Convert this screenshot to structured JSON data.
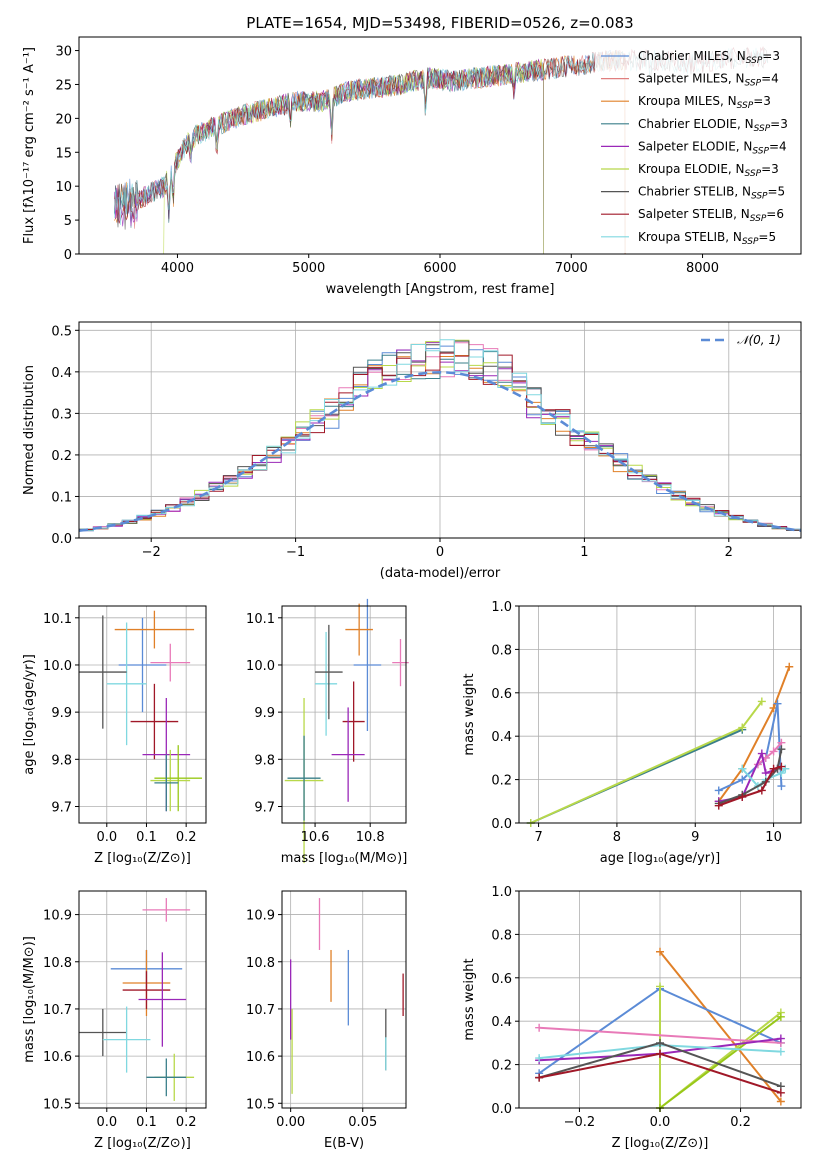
{
  "figure_title": "PLATE=1654, MJD=53498, FIBERID=0526, z=0.083",
  "colors": {
    "Chabrier MILES": "#5b8bd6",
    "Salpeter MILES": "#e07f7f",
    "Kroupa MILES": "#e08028",
    "Chabrier ELODIE": "#3a7f8a",
    "Salpeter ELODIE": "#9a28b8",
    "Kroupa ELODIE": "#b8d84a",
    "Chabrier STELIB": "#555555",
    "Salpeter STELIB": "#a01828",
    "Kroupa STELIB": "#80d8e0",
    "Salpeter pink": "#e87ab8",
    "Kroupa ELODIE green": "#98c818",
    "grid": "#b0b0b0",
    "normal_curve": "#5b8bd6"
  },
  "chart_data": [
    {
      "id": "spectrum",
      "type": "line",
      "xlabel": "wavelength [Angstrom, rest frame]",
      "ylabel": "Flux [fλ10⁻¹⁷ erg cm⁻² s⁻¹ A⁻¹]",
      "xlim": [
        3250,
        8750
      ],
      "ylim": [
        0,
        32
      ],
      "xticks": [
        "4000",
        "5000",
        "6000",
        "7000",
        "8000"
      ],
      "yticks": [
        "0",
        "5",
        "10",
        "15",
        "20",
        "25",
        "30"
      ],
      "grid": false,
      "legend_position": "right",
      "legend": [
        {
          "label": "Chabrier MILES, N",
          "sub": "SSP",
          "tail": "=3",
          "color": "#5b8bd6"
        },
        {
          "label": "Salpeter MILES, N",
          "sub": "SSP",
          "tail": "=4",
          "color": "#e07f7f"
        },
        {
          "label": "Kroupa MILES, N",
          "sub": "SSP",
          "tail": "=3",
          "color": "#e08028"
        },
        {
          "label": "Chabrier ELODIE, N",
          "sub": "SSP",
          "tail": "=3",
          "color": "#3a7f8a"
        },
        {
          "label": "Salpeter ELODIE, N",
          "sub": "SSP",
          "tail": "=4",
          "color": "#9a28b8"
        },
        {
          "label": "Kroupa ELODIE, N",
          "sub": "SSP",
          "tail": "=3",
          "color": "#b8d84a"
        },
        {
          "label": "Chabrier STELIB, N",
          "sub": "SSP",
          "tail": "=5",
          "color": "#555555"
        },
        {
          "label": "Salpeter STELIB, N",
          "sub": "SSP",
          "tail": "=6",
          "color": "#a01828"
        },
        {
          "label": "Kroupa STELIB, N",
          "sub": "SSP",
          "tail": "=5",
          "color": "#80d8e0"
        }
      ],
      "envelope": {
        "x": [
          3500,
          3700,
          3900,
          4000,
          4100,
          4300,
          4500,
          4700,
          4900,
          5100,
          5300,
          5500,
          5700,
          5900,
          6100,
          6300,
          6500,
          6700,
          6900,
          7100,
          7300,
          7500,
          7700,
          7900,
          8100,
          8300,
          8500
        ],
        "y": [
          6.5,
          8,
          10,
          14,
          17,
          19,
          20.5,
          21.5,
          22.5,
          22.5,
          24,
          24.5,
          25,
          26,
          25.5,
          26,
          26.5,
          27,
          27.5,
          28,
          28.5,
          28.5,
          28.5,
          28,
          28.5,
          29,
          29
        ]
      },
      "cutoffs": [
        {
          "name": "Kroupa ELODIE",
          "at": 3900
        },
        {
          "name": "ELODIE",
          "at": 6800
        },
        {
          "name": "MILES",
          "at": 7400
        }
      ]
    },
    {
      "id": "residuals",
      "type": "line",
      "xlabel": "(data-model)/error",
      "ylabel": "Normed distribution",
      "xlim": [
        -2.5,
        2.5
      ],
      "ylim": [
        0,
        0.52
      ],
      "xticks": [
        "−2",
        "−1",
        "0",
        "1",
        "2"
      ],
      "yticks": [
        "0.0",
        "0.1",
        "0.2",
        "0.3",
        "0.4",
        "0.5"
      ],
      "grid": true,
      "legend_position": "upper right",
      "legend": [
        {
          "label": "𝒩(0, 1)",
          "color": "#5b8bd6"
        }
      ],
      "bin_width": 0.1
    },
    {
      "id": "age_vs_Z",
      "type": "scatter",
      "xlabel": "Z [log₁₀(Z/Z⊙)]",
      "ylabel": "age  [log₁₀(age/yr)]",
      "xlim": [
        -0.07,
        0.25
      ],
      "ylim": [
        9.665,
        10.125
      ],
      "xticks": [
        "0.0",
        "0.1",
        "0.2"
      ],
      "yticks": [
        "9.7",
        "9.8",
        "9.9",
        "10.0",
        "10.1"
      ],
      "grid": true,
      "points": [
        {
          "x": 0.09,
          "y": 10.0,
          "xerr": 0.06,
          "yerr": 0.1,
          "color": "#5b8bd6"
        },
        {
          "x": 0.16,
          "y": 10.005,
          "xerr": 0.05,
          "yerr": 0.04,
          "color": "#e87ab8"
        },
        {
          "x": 0.12,
          "y": 10.075,
          "xerr": 0.1,
          "yerr": 0.04,
          "color": "#e08028"
        },
        {
          "x": 0.05,
          "y": 9.96,
          "xerr": 0.05,
          "yerr": 0.13,
          "color": "#80d8e0"
        },
        {
          "x": -0.01,
          "y": 9.985,
          "xerr": 0.06,
          "yerr": 0.12,
          "color": "#555555"
        },
        {
          "x": 0.12,
          "y": 9.88,
          "xerr": 0.06,
          "yerr": 0.08,
          "color": "#a01828"
        },
        {
          "x": 0.15,
          "y": 9.81,
          "xerr": 0.06,
          "yerr": 0.12,
          "color": "#9a28b8"
        },
        {
          "x": 0.16,
          "y": 9.755,
          "xerr": 0.05,
          "yerr": 0.065,
          "color": "#b8d84a"
        },
        {
          "x": 0.18,
          "y": 9.76,
          "xerr": 0.06,
          "yerr": 0.07,
          "color": "#98c818"
        },
        {
          "x": 0.15,
          "y": 9.75,
          "xerr": 0.03,
          "yerr": 0.06,
          "color": "#3a7f8a"
        }
      ]
    },
    {
      "id": "age_vs_mass",
      "type": "scatter",
      "xlabel": "mass [log₁₀(M/M⊙)]",
      "ylabel": "",
      "xlim": [
        10.48,
        10.93
      ],
      "ylim": [
        9.665,
        10.125
      ],
      "xticks": [
        "10.6",
        "10.8"
      ],
      "yticks": [
        "9.7",
        "9.8",
        "9.9",
        "10.0",
        "10.1"
      ],
      "grid": true,
      "points": [
        {
          "x": 10.79,
          "y": 10.0,
          "xerr": 0.05,
          "yerr": 0.14,
          "color": "#5b8bd6"
        },
        {
          "x": 10.91,
          "y": 10.005,
          "xerr": 0.03,
          "yerr": 0.05,
          "color": "#e87ab8"
        },
        {
          "x": 10.76,
          "y": 10.075,
          "xerr": 0.05,
          "yerr": 0.055,
          "color": "#e08028"
        },
        {
          "x": 10.64,
          "y": 9.96,
          "xerr": 0.04,
          "yerr": 0.11,
          "color": "#80d8e0"
        },
        {
          "x": 10.65,
          "y": 9.985,
          "xerr": 0.05,
          "yerr": 0.1,
          "color": "#555555"
        },
        {
          "x": 10.74,
          "y": 9.88,
          "xerr": 0.04,
          "yerr": 0.085,
          "color": "#a01828"
        },
        {
          "x": 10.72,
          "y": 9.81,
          "xerr": 0.06,
          "yerr": 0.1,
          "color": "#9a28b8"
        },
        {
          "x": 10.56,
          "y": 9.755,
          "xerr": 0.07,
          "yerr": 0.175,
          "color": "#b8d84a"
        },
        {
          "x": 10.56,
          "y": 9.76,
          "xerr": 0.06,
          "yerr": 0.09,
          "color": "#3a7f8a"
        }
      ]
    },
    {
      "id": "massweight_vs_age",
      "type": "line",
      "xlabel": "age  [log₁₀(age/yr)]",
      "ylabel": "mass weight",
      "xlim": [
        6.75,
        10.35
      ],
      "ylim": [
        0,
        1.0
      ],
      "xticks": [
        "7",
        "8",
        "9",
        "10"
      ],
      "yticks": [
        "0.0",
        "0.2",
        "0.4",
        "0.6",
        "0.8",
        "1.0"
      ],
      "grid": true,
      "series": [
        {
          "color": "#3a7f8a",
          "x": [
            6.9,
            9.6
          ],
          "y": [
            0.0,
            0.43
          ]
        },
        {
          "color": "#b8d84a",
          "x": [
            6.9,
            9.6,
            9.85
          ],
          "y": [
            0.0,
            0.44,
            0.56
          ]
        },
        {
          "color": "#e08028",
          "x": [
            9.3,
            9.6,
            10.0,
            10.2
          ],
          "y": [
            0.1,
            0.25,
            0.53,
            0.72
          ]
        },
        {
          "color": "#5b8bd6",
          "x": [
            9.3,
            9.6,
            9.9,
            10.05,
            10.1
          ],
          "y": [
            0.15,
            0.2,
            0.3,
            0.55,
            0.17
          ]
        },
        {
          "color": "#e87ab8",
          "x": [
            9.8,
            9.9,
            10.0,
            10.1
          ],
          "y": [
            0.27,
            0.3,
            0.33,
            0.37
          ]
        },
        {
          "color": "#9a28b8",
          "x": [
            9.3,
            9.6,
            9.85,
            9.9,
            10.05
          ],
          "y": [
            0.1,
            0.12,
            0.32,
            0.23,
            0.25
          ]
        },
        {
          "color": "#80d8e0",
          "x": [
            9.6,
            9.8,
            9.9,
            10.1,
            10.15
          ],
          "y": [
            0.25,
            0.17,
            0.2,
            0.23,
            0.25
          ]
        },
        {
          "color": "#555555",
          "x": [
            9.3,
            9.6,
            9.9,
            10.05,
            10.1
          ],
          "y": [
            0.09,
            0.13,
            0.19,
            0.25,
            0.34
          ]
        },
        {
          "color": "#a01828",
          "x": [
            9.3,
            9.6,
            9.85,
            10.0,
            10.1
          ],
          "y": [
            0.08,
            0.12,
            0.15,
            0.25,
            0.26
          ]
        }
      ]
    },
    {
      "id": "mass_vs_Z",
      "type": "scatter",
      "xlabel": "Z [log₁₀(Z/Z⊙)]",
      "ylabel": "mass [log₁₀(M/M⊙)]",
      "xlim": [
        -0.07,
        0.25
      ],
      "ylim": [
        10.49,
        10.95
      ],
      "xticks": [
        "0.0",
        "0.1",
        "0.2"
      ],
      "yticks": [
        "10.5",
        "10.6",
        "10.7",
        "10.8",
        "10.9"
      ],
      "grid": true,
      "points": [
        {
          "x": 0.15,
          "y": 10.91,
          "xerr": 0.06,
          "yerr": 0.025,
          "color": "#e87ab8"
        },
        {
          "x": 0.1,
          "y": 10.785,
          "xerr": 0.09,
          "yerr": 0.04,
          "color": "#5b8bd6"
        },
        {
          "x": 0.1,
          "y": 10.755,
          "xerr": 0.06,
          "yerr": 0.07,
          "color": "#e08028"
        },
        {
          "x": 0.1,
          "y": 10.74,
          "xerr": 0.06,
          "yerr": 0.04,
          "color": "#a01828"
        },
        {
          "x": 0.14,
          "y": 10.72,
          "xerr": 0.06,
          "yerr": 0.1,
          "color": "#9a28b8"
        },
        {
          "x": -0.01,
          "y": 10.65,
          "xerr": 0.06,
          "yerr": 0.05,
          "color": "#555555"
        },
        {
          "x": 0.05,
          "y": 10.635,
          "xerr": 0.06,
          "yerr": 0.07,
          "color": "#80d8e0"
        },
        {
          "x": 0.17,
          "y": 10.555,
          "xerr": 0.05,
          "yerr": 0.05,
          "color": "#b8d84a"
        },
        {
          "x": 0.15,
          "y": 10.555,
          "xerr": 0.05,
          "yerr": 0.04,
          "color": "#3a7f8a"
        }
      ]
    },
    {
      "id": "mass_vs_ebv",
      "type": "scatter",
      "xlabel": "E(B-V)",
      "ylabel": "",
      "xlim": [
        -0.006,
        0.08
      ],
      "ylim": [
        10.49,
        10.95
      ],
      "xticks": [
        "0.00",
        "0.05"
      ],
      "yticks": [
        "10.5",
        "10.6",
        "10.7",
        "10.8",
        "10.9"
      ],
      "grid": true,
      "points": [
        {
          "x": 0.02,
          "y": 10.88,
          "xerr": 0.0,
          "yerr": 0.055,
          "color": "#e87ab8"
        },
        {
          "x": 0.04,
          "y": 10.745,
          "xerr": 0.0,
          "yerr": 0.08,
          "color": "#5b8bd6"
        },
        {
          "x": 0.028,
          "y": 10.77,
          "xerr": 0.0,
          "yerr": 0.055,
          "color": "#e08028"
        },
        {
          "x": 0.078,
          "y": 10.73,
          "xerr": 0.0,
          "yerr": 0.045,
          "color": "#a01828"
        },
        {
          "x": 0.0,
          "y": 10.72,
          "xerr": 0.0,
          "yerr": 0.085,
          "color": "#9a28b8"
        },
        {
          "x": 0.066,
          "y": 10.635,
          "xerr": 0.0,
          "yerr": 0.065,
          "color": "#555555"
        },
        {
          "x": 0.066,
          "y": 10.605,
          "xerr": 0.0,
          "yerr": 0.035,
          "color": "#80d8e0"
        },
        {
          "x": 0.001,
          "y": 10.61,
          "xerr": 0.0,
          "yerr": 0.09,
          "color": "#b8d84a"
        }
      ]
    },
    {
      "id": "massweight_vs_Z",
      "type": "line",
      "xlabel": "Z [log₁₀(Z/Z⊙)]",
      "ylabel": "mass weight",
      "xlim": [
        -0.35,
        0.35
      ],
      "ylim": [
        0,
        1.0
      ],
      "xticks": [
        "−0.2",
        "0.0",
        "0.2"
      ],
      "yticks": [
        "0.0",
        "0.2",
        "0.4",
        "0.6",
        "0.8",
        "1.0"
      ],
      "grid": true,
      "series": [
        {
          "color": "#e08028",
          "x": [
            0.0,
            0.3
          ],
          "y": [
            0.72,
            0.03
          ]
        },
        {
          "color": "#5b8bd6",
          "x": [
            -0.3,
            0.0,
            0.3
          ],
          "y": [
            0.16,
            0.55,
            0.3
          ]
        },
        {
          "color": "#b8d84a",
          "x": [
            0.0,
            0.0,
            0.3
          ],
          "y": [
            0.56,
            0.0,
            0.44
          ]
        },
        {
          "color": "#98c818",
          "x": [
            0.0,
            0.3
          ],
          "y": [
            0.0,
            0.42
          ]
        },
        {
          "color": "#e87ab8",
          "x": [
            -0.3,
            0.3
          ],
          "y": [
            0.37,
            0.3
          ]
        },
        {
          "color": "#9a28b8",
          "x": [
            -0.3,
            0.0,
            0.3
          ],
          "y": [
            0.22,
            0.25,
            0.32
          ]
        },
        {
          "color": "#80d8e0",
          "x": [
            -0.3,
            0.0,
            0.3
          ],
          "y": [
            0.23,
            0.29,
            0.26
          ]
        },
        {
          "color": "#555555",
          "x": [
            -0.3,
            0.0,
            0.3
          ],
          "y": [
            0.14,
            0.3,
            0.1
          ]
        },
        {
          "color": "#a01828",
          "x": [
            -0.3,
            0.0,
            0.3
          ],
          "y": [
            0.14,
            0.25,
            0.07
          ]
        }
      ]
    }
  ]
}
